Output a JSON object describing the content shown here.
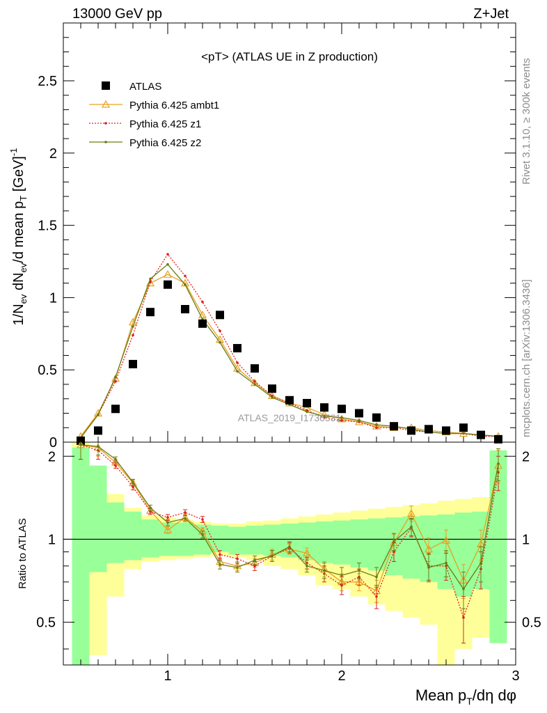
{
  "header": {
    "left": "13000 GeV pp",
    "right": "Z+Jet",
    "side_top": "Rivet 3.1.10, ≥ 300k events",
    "side_bottom": "mcplots.cern.ch [arXiv:1306.3436]",
    "watermark": "ATLAS_2019_I1736531"
  },
  "colors": {
    "atlas": "#000000",
    "ambt1": "#e8a020",
    "z1": "#e0201a",
    "z2": "#6b7a10",
    "band_inner": "#99ff99",
    "band_outer": "#ffff99"
  },
  "chart_data": [
    {
      "type": "scatter",
      "title": "<pT> (ATLAS UE in Z production)",
      "ylabel": "1/N_ev dN_ev/d mean p_T [GeV]^-1",
      "xlim": [
        0.4,
        3.0
      ],
      "ylim": [
        0,
        2.9
      ],
      "yticks": [
        0,
        0.5,
        1,
        1.5,
        2,
        2.5
      ],
      "ytick_labels": [
        "0",
        "0.5",
        "1",
        "1.5",
        "2",
        "2.5"
      ],
      "legend_position": "top-left",
      "x": [
        0.5,
        0.6,
        0.7,
        0.8,
        0.9,
        1.0,
        1.1,
        1.2,
        1.3,
        1.4,
        1.5,
        1.6,
        1.7,
        1.8,
        1.9,
        2.0,
        2.1,
        2.2,
        2.3,
        2.4,
        2.5,
        2.6,
        2.7,
        2.8,
        2.9
      ],
      "series": [
        {
          "name": "ATLAS",
          "marker": "square",
          "values": [
            0.01,
            0.08,
            0.23,
            0.54,
            0.9,
            1.09,
            0.92,
            0.82,
            0.88,
            0.65,
            0.51,
            0.37,
            0.29,
            0.27,
            0.24,
            0.23,
            0.2,
            0.17,
            0.11,
            0.08,
            0.09,
            0.08,
            0.1,
            0.05,
            0.02
          ]
        },
        {
          "name": "Pythia 6.425 ambt1",
          "marker": "triangle",
          "line": "solid",
          "values": [
            0.04,
            0.2,
            0.44,
            0.83,
            1.1,
            1.16,
            1.1,
            0.88,
            0.71,
            0.51,
            0.41,
            0.32,
            0.27,
            0.24,
            0.19,
            0.16,
            0.14,
            0.11,
            0.1,
            0.1,
            0.08,
            0.07,
            0.06,
            0.05,
            0.04
          ]
        },
        {
          "name": "Pythia 6.425 z1",
          "marker": "dot",
          "line": "dotted",
          "values": [
            0.03,
            0.19,
            0.42,
            0.74,
            1.11,
            1.3,
            1.15,
            0.97,
            0.77,
            0.55,
            0.42,
            0.32,
            0.27,
            0.22,
            0.17,
            0.15,
            0.14,
            0.1,
            0.1,
            0.08,
            0.07,
            0.06,
            0.06,
            0.04,
            0.04
          ]
        },
        {
          "name": "Pythia 6.425 z2",
          "marker": "dot",
          "line": "solid",
          "values": [
            0.03,
            0.19,
            0.45,
            0.8,
            1.13,
            1.23,
            1.09,
            0.85,
            0.69,
            0.49,
            0.4,
            0.31,
            0.26,
            0.21,
            0.18,
            0.17,
            0.15,
            0.12,
            0.11,
            0.09,
            0.07,
            0.06,
            0.06,
            0.05,
            0.04
          ]
        }
      ]
    },
    {
      "type": "scatter",
      "ylabel": "Ratio to ATLAS",
      "xlabel": "Mean p_T/dη dφ",
      "xlim": [
        0.4,
        3.0
      ],
      "ylim": [
        0.35,
        2.25
      ],
      "yticks": [
        0.5,
        1,
        2
      ],
      "ytick_labels": [
        "0.5",
        "1",
        "2"
      ],
      "xticks": [
        1,
        2,
        3
      ],
      "xtick_labels": [
        "1",
        "2",
        "3"
      ],
      "x": [
        0.5,
        0.6,
        0.7,
        0.8,
        0.9,
        1.0,
        1.1,
        1.2,
        1.3,
        1.4,
        1.5,
        1.6,
        1.7,
        1.8,
        1.9,
        2.0,
        2.1,
        2.2,
        2.3,
        2.4,
        2.5,
        2.6,
        2.7,
        2.8,
        2.9
      ],
      "band_inner": [
        [
          0.35,
          2.15
        ],
        [
          0.76,
          1.85
        ],
        [
          0.82,
          1.36
        ],
        [
          0.84,
          1.26
        ],
        [
          0.86,
          1.18
        ],
        [
          0.87,
          1.15
        ],
        [
          0.87,
          1.15
        ],
        [
          0.88,
          1.13
        ],
        [
          0.9,
          1.12
        ],
        [
          0.88,
          1.11
        ],
        [
          0.88,
          1.12
        ],
        [
          0.87,
          1.13
        ],
        [
          0.86,
          1.14
        ],
        [
          0.84,
          1.15
        ],
        [
          0.82,
          1.16
        ],
        [
          0.81,
          1.17
        ],
        [
          0.79,
          1.18
        ],
        [
          0.77,
          1.19
        ],
        [
          0.74,
          1.2
        ],
        [
          0.72,
          1.21
        ],
        [
          0.7,
          1.22
        ],
        [
          0.66,
          1.23
        ],
        [
          0.62,
          1.25
        ],
        [
          0.66,
          1.26
        ],
        [
          0.42,
          2.1
        ]
      ],
      "band_outer": [
        [
          0.35,
          2.25
        ],
        [
          0.38,
          1.55
        ],
        [
          0.62,
          1.46
        ],
        [
          0.78,
          1.3
        ],
        [
          0.83,
          1.22
        ],
        [
          0.84,
          1.2
        ],
        [
          0.85,
          1.18
        ],
        [
          0.86,
          1.16
        ],
        [
          0.87,
          1.14
        ],
        [
          0.86,
          1.14
        ],
        [
          0.84,
          1.16
        ],
        [
          0.8,
          1.17
        ],
        [
          0.78,
          1.19
        ],
        [
          0.74,
          1.21
        ],
        [
          0.68,
          1.23
        ],
        [
          0.66,
          1.25
        ],
        [
          0.62,
          1.27
        ],
        [
          0.58,
          1.29
        ],
        [
          0.55,
          1.31
        ],
        [
          0.52,
          1.33
        ],
        [
          0.49,
          1.35
        ],
        [
          0.35,
          1.38
        ],
        [
          0.4,
          1.4
        ],
        [
          0.44,
          1.42
        ],
        [
          0.42,
          2.1
        ]
      ],
      "series": [
        {
          "name": "Pythia 6.425 ambt1",
          "values": [
            2.2,
            2.15,
            1.9,
            1.6,
            1.27,
            1.08,
            1.2,
            1.07,
            0.83,
            0.8,
            0.82,
            0.88,
            0.92,
            0.89,
            0.78,
            0.7,
            0.7,
            0.65,
            0.97,
            1.24,
            0.92,
            0.99,
            0.71,
            0.96,
            1.85
          ],
          "errors": [
            0.25,
            0.15,
            0.04,
            0.04,
            0.03,
            0.03,
            0.03,
            0.03,
            0.03,
            0.03,
            0.03,
            0.04,
            0.04,
            0.04,
            0.05,
            0.05,
            0.05,
            0.06,
            0.07,
            0.08,
            0.09,
            0.09,
            0.1,
            0.12,
            0.25
          ]
        },
        {
          "name": "Pythia 6.425 z1",
          "values": [
            2.2,
            2.1,
            1.85,
            1.55,
            1.26,
            1.2,
            1.25,
            1.18,
            0.88,
            0.85,
            0.8,
            0.87,
            0.93,
            0.82,
            0.75,
            0.68,
            0.73,
            0.62,
            0.9,
            1.1,
            0.8,
            0.8,
            0.52,
            0.78,
            1.75
          ],
          "errors": [
            0.25,
            0.15,
            0.04,
            0.04,
            0.03,
            0.03,
            0.03,
            0.03,
            0.03,
            0.03,
            0.03,
            0.04,
            0.04,
            0.04,
            0.05,
            0.05,
            0.05,
            0.06,
            0.07,
            0.08,
            0.09,
            0.09,
            0.1,
            0.12,
            0.25
          ]
        },
        {
          "name": "Pythia 6.425 z2",
          "values": [
            2.2,
            2.17,
            1.95,
            1.61,
            1.3,
            1.15,
            1.19,
            1.04,
            0.81,
            0.79,
            0.84,
            0.87,
            0.94,
            0.8,
            0.77,
            0.74,
            0.77,
            0.73,
            0.98,
            1.11,
            0.79,
            0.82,
            0.66,
            0.82,
            1.88
          ],
          "errors": [
            0.25,
            0.15,
            0.04,
            0.04,
            0.03,
            0.03,
            0.03,
            0.03,
            0.03,
            0.03,
            0.03,
            0.04,
            0.04,
            0.04,
            0.05,
            0.05,
            0.05,
            0.06,
            0.07,
            0.08,
            0.09,
            0.09,
            0.1,
            0.12,
            0.25
          ]
        }
      ]
    }
  ]
}
